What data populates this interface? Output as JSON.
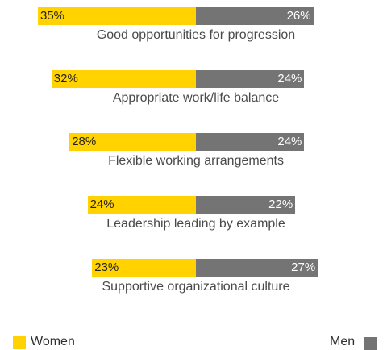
{
  "chart_data": {
    "type": "bar",
    "orientation": "horizontal-diverging",
    "categories": [
      "Good opportunities for progression",
      "Appropriate work/life balance",
      "Flexible working arrangements",
      "Leadership leading by example",
      "Supportive organizational culture"
    ],
    "series": [
      {
        "name": "Women",
        "values": [
          35,
          32,
          28,
          24,
          23
        ],
        "labels": [
          "35%",
          "32%",
          "28%",
          "24%",
          "23%"
        ],
        "color": "#FFD200"
      },
      {
        "name": "Men",
        "values": [
          26,
          24,
          24,
          22,
          27
        ],
        "labels": [
          "26%",
          "24%",
          "24%",
          "22%",
          "27%"
        ],
        "color": "#747474"
      }
    ],
    "legend": {
      "women": {
        "label": "Women",
        "placement": "bottom-left"
      },
      "men": {
        "label": "Men",
        "placement": "bottom-right"
      }
    },
    "colors": {
      "women": "#FFD200",
      "men": "#747474",
      "women_text": "#222222",
      "men_text": "#ffffff"
    }
  }
}
